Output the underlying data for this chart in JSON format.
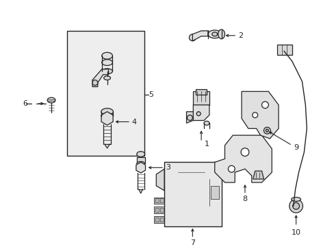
{
  "background_color": "#ffffff",
  "fig_width": 4.89,
  "fig_height": 3.6,
  "dpi": 100,
  "line_color": "#222222",
  "fill_color": "#e8e8e8",
  "box_fill": "#eeeeee"
}
